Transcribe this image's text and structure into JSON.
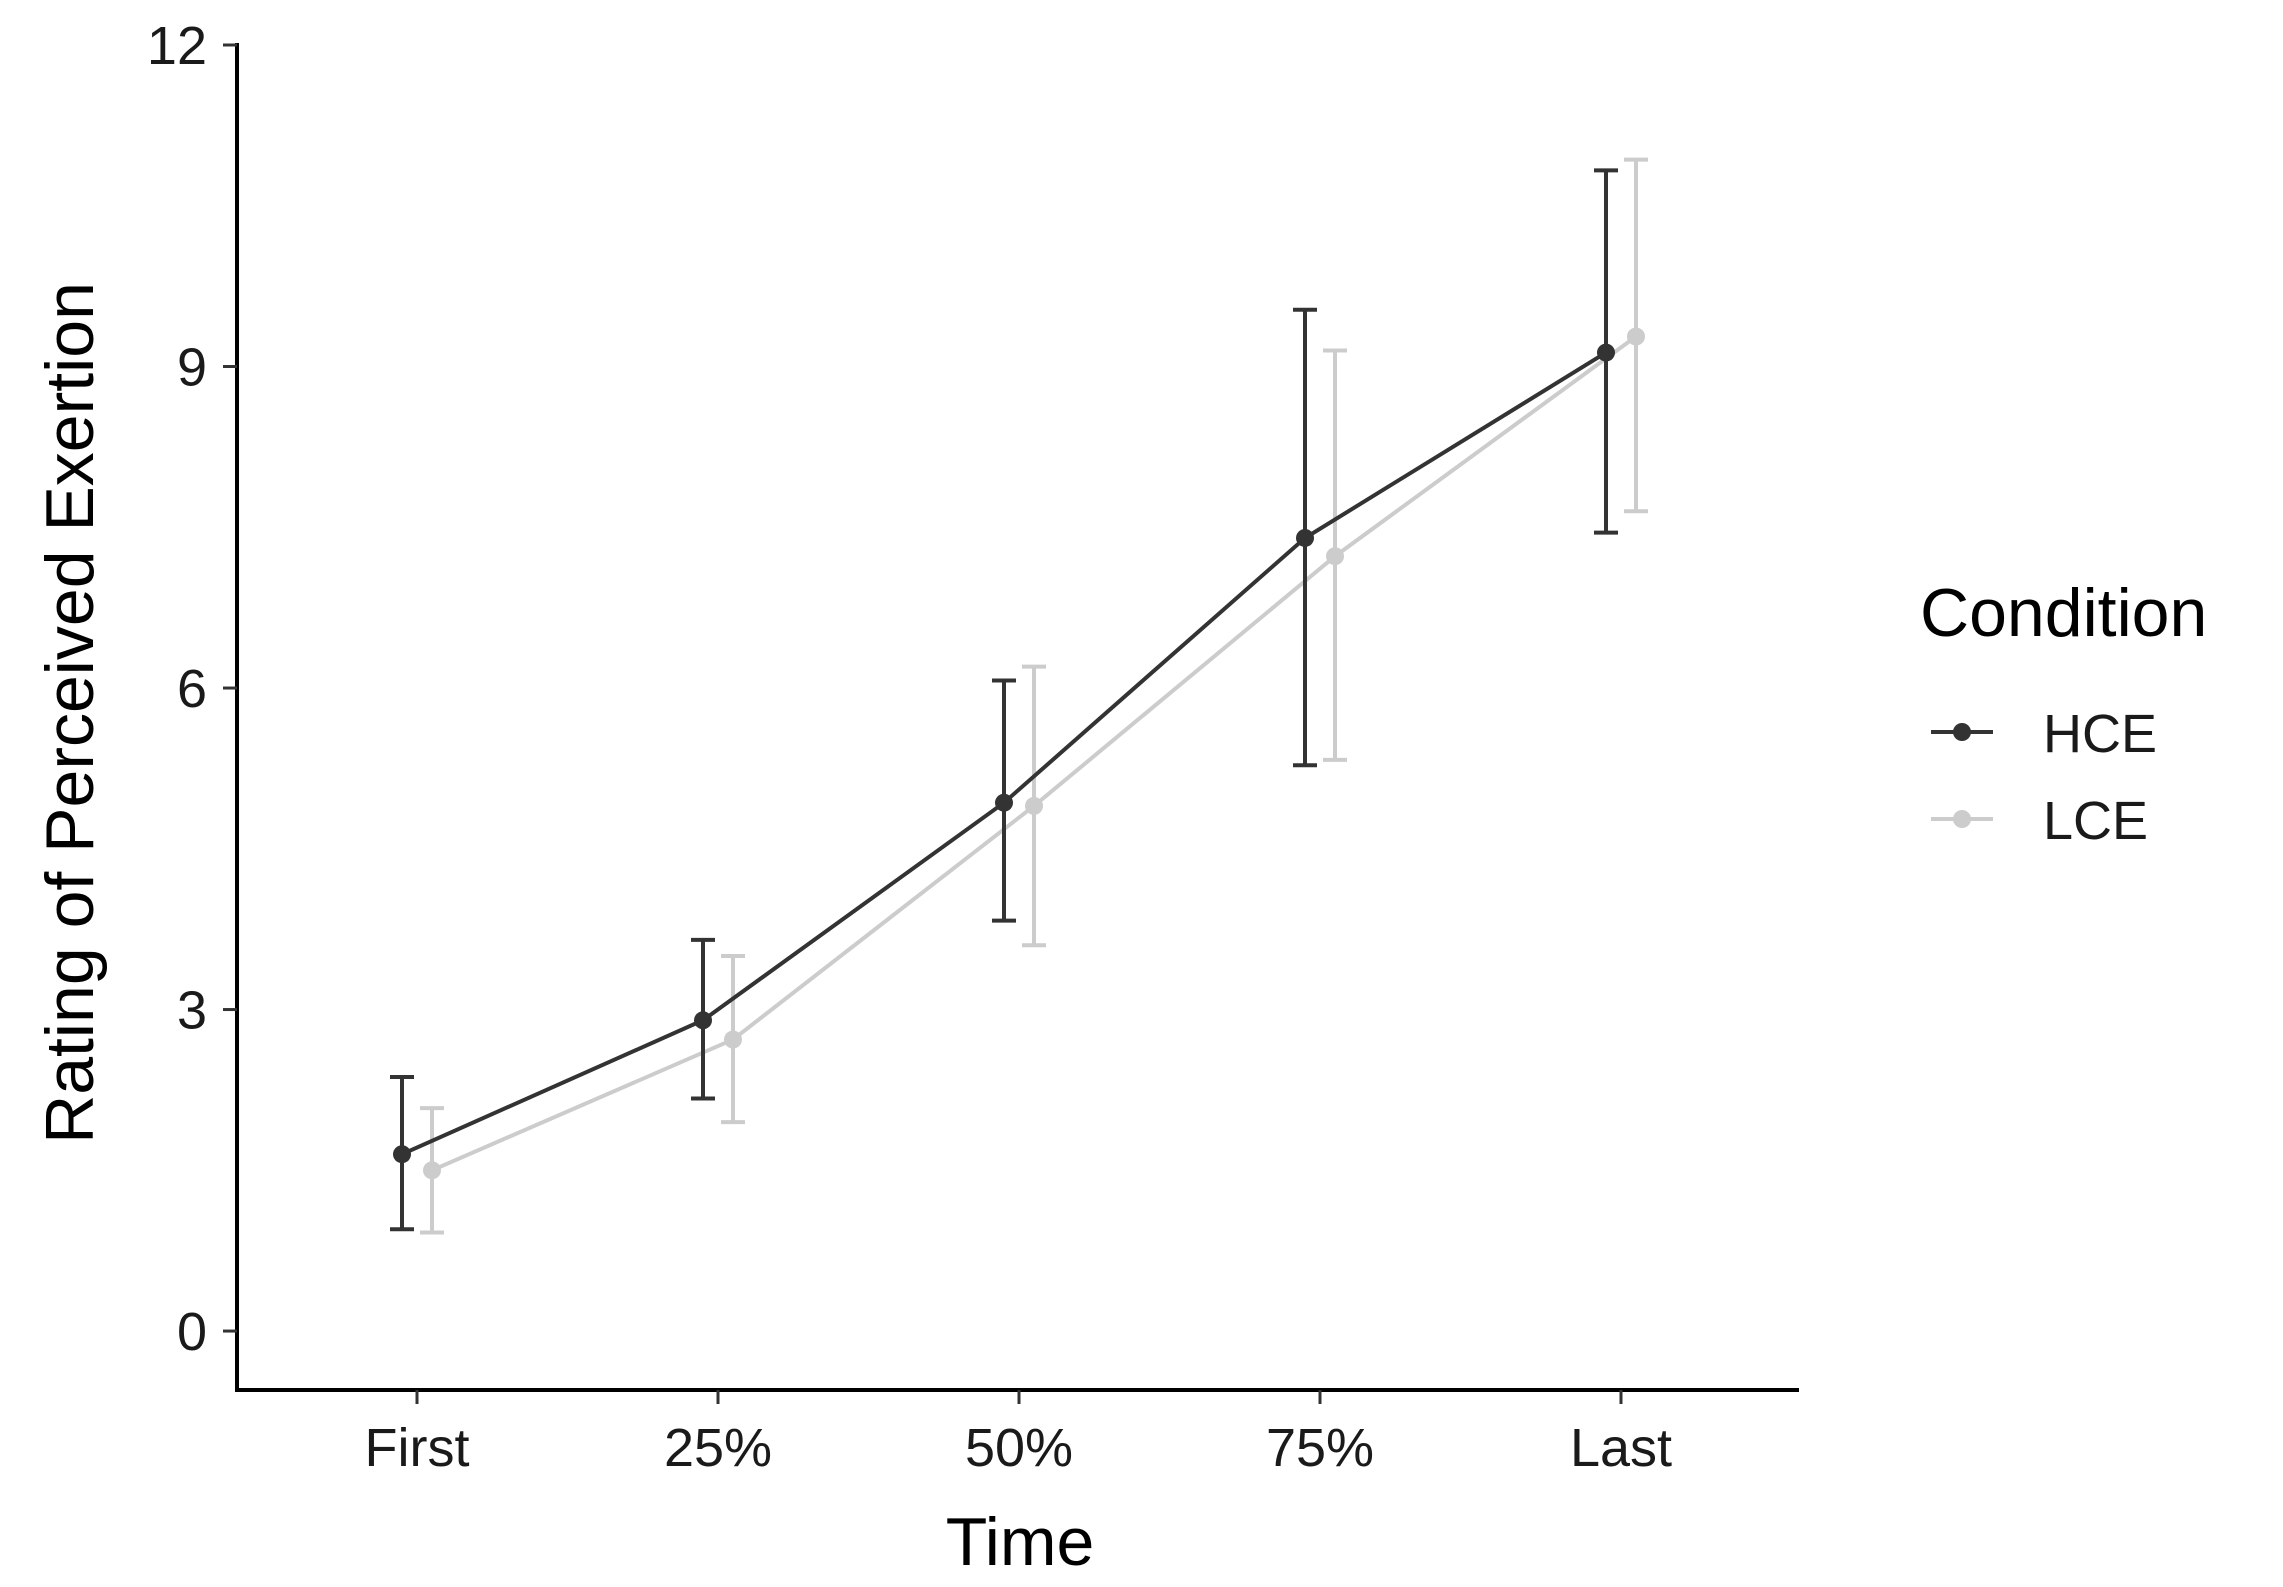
{
  "chart_data": {
    "type": "line",
    "title": "",
    "xlabel": "Time",
    "ylabel": "Rating of Perceived Exertion",
    "categories": [
      "First",
      "25%",
      "50%",
      "75%",
      "Last"
    ],
    "ylim": [
      -0.55,
      12
    ],
    "yticks": [
      0,
      3,
      6,
      9,
      12
    ],
    "ytick_labels": [
      "0",
      "3",
      "6",
      "9",
      "12"
    ],
    "grid": false,
    "legend": {
      "title": "Condition",
      "position": "right"
    },
    "series": [
      {
        "name": "HCE",
        "color": "#333333",
        "values": [
          1.65,
          2.9,
          4.93,
          7.4,
          9.13
        ],
        "error_low": [
          0.95,
          2.17,
          3.83,
          5.28,
          7.45
        ],
        "error_high": [
          2.37,
          3.65,
          6.07,
          9.53,
          10.83
        ]
      },
      {
        "name": "LCE",
        "color": "#cccccc",
        "values": [
          1.5,
          2.72,
          4.9,
          7.23,
          9.28
        ],
        "error_low": [
          0.92,
          1.95,
          3.6,
          5.33,
          7.65
        ],
        "error_high": [
          2.08,
          3.5,
          6.2,
          9.15,
          10.93
        ]
      }
    ]
  }
}
